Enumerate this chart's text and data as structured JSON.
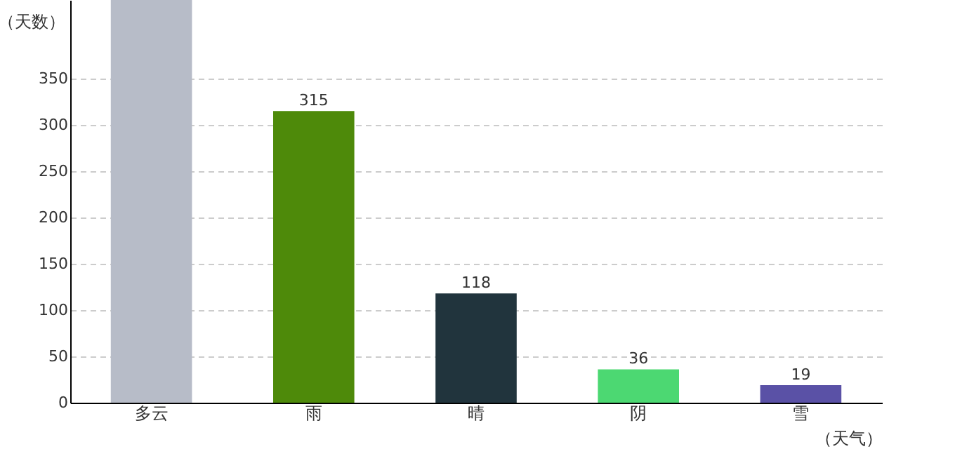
{
  "chart_data": {
    "type": "bar",
    "xlabel": "（天气）",
    "ylabel": "（天数）",
    "categories": [
      "多云",
      "雨",
      "晴",
      "阴",
      "雪"
    ],
    "values": [
      435,
      315,
      118,
      36,
      19
    ],
    "colors": [
      "#b7bcc8",
      "#4e8a0a",
      "#21343d",
      "#4cd872",
      "#5a51a6"
    ],
    "value_labels": [
      null,
      "315",
      "118",
      "36",
      "19"
    ],
    "ylim": [
      0,
      435
    ],
    "yticks": [
      0,
      50,
      100,
      150,
      200,
      250,
      300,
      350
    ],
    "grid": "y"
  }
}
